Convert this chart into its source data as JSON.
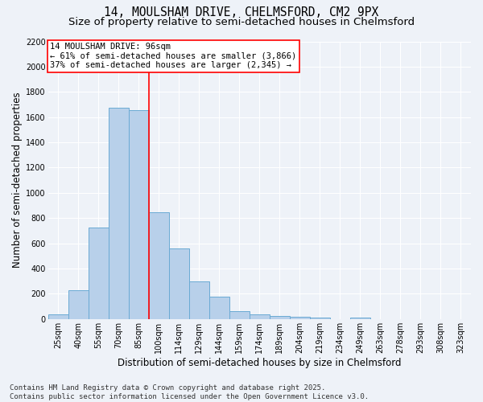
{
  "title_line1": "14, MOULSHAM DRIVE, CHELMSFORD, CM2 9PX",
  "title_line2": "Size of property relative to semi-detached houses in Chelmsford",
  "xlabel": "Distribution of semi-detached houses by size in Chelmsford",
  "ylabel": "Number of semi-detached properties",
  "categories": [
    "25sqm",
    "40sqm",
    "55sqm",
    "70sqm",
    "85sqm",
    "100sqm",
    "114sqm",
    "129sqm",
    "144sqm",
    "159sqm",
    "174sqm",
    "189sqm",
    "204sqm",
    "219sqm",
    "234sqm",
    "249sqm",
    "263sqm",
    "278sqm",
    "293sqm",
    "308sqm",
    "323sqm"
  ],
  "values": [
    40,
    225,
    725,
    1675,
    1655,
    845,
    560,
    295,
    175,
    65,
    40,
    25,
    15,
    10,
    0,
    10,
    0,
    0,
    0,
    0,
    0
  ],
  "bar_color": "#b8d0ea",
  "bar_edge_color": "#6aaad4",
  "vline_color": "red",
  "vline_pos": 4.5,
  "annotation_title": "14 MOULSHAM DRIVE: 96sqm",
  "annotation_line2": "← 61% of semi-detached houses are smaller (3,866)",
  "annotation_line3": "37% of semi-detached houses are larger (2,345) →",
  "annotation_box_color": "red",
  "ylim": [
    0,
    2200
  ],
  "yticks": [
    0,
    200,
    400,
    600,
    800,
    1000,
    1200,
    1400,
    1600,
    1800,
    2000,
    2200
  ],
  "footer_line1": "Contains HM Land Registry data © Crown copyright and database right 2025.",
  "footer_line2": "Contains public sector information licensed under the Open Government Licence v3.0.",
  "bg_color": "#eef2f8",
  "plot_bg_color": "#eef2f8",
  "grid_color": "#ffffff",
  "title_fontsize": 10.5,
  "subtitle_fontsize": 9.5,
  "axis_label_fontsize": 8.5,
  "tick_fontsize": 7,
  "annotation_fontsize": 7.5,
  "footer_fontsize": 6.5
}
